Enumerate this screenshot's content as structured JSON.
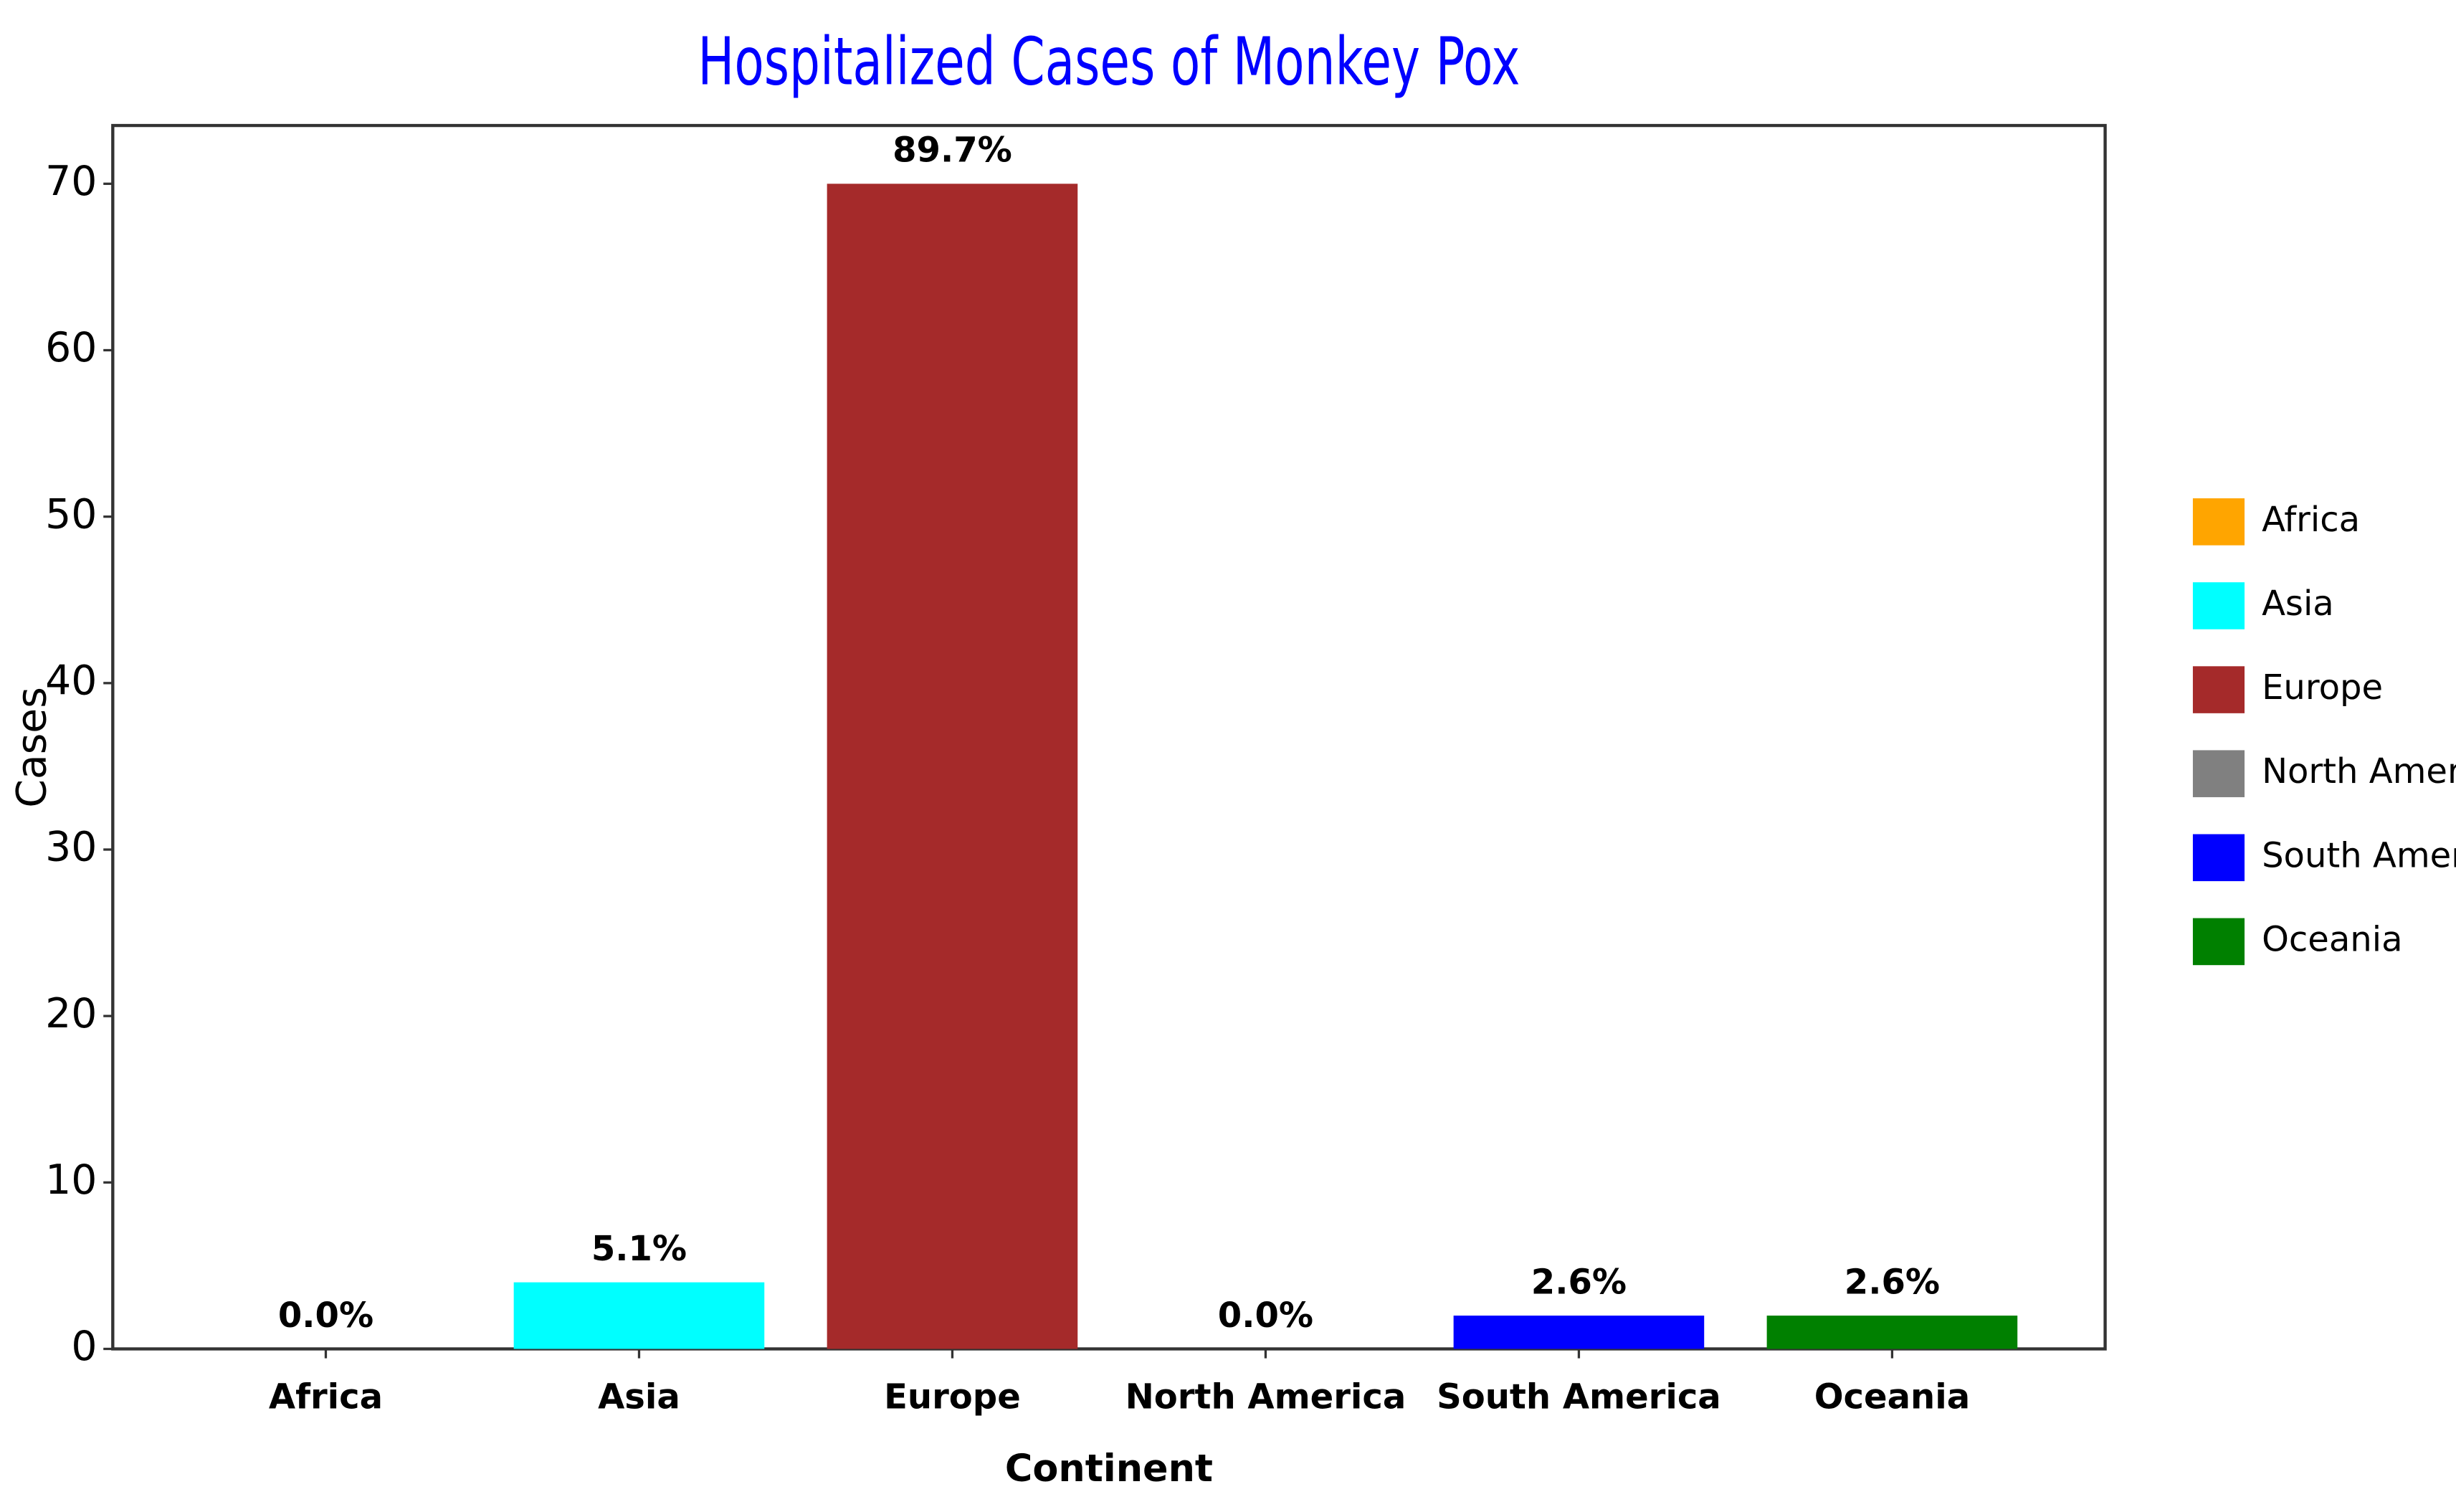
{
  "chart_data": {
    "type": "bar",
    "title": "Hospitalized Cases of Monkey Pox",
    "x_label": "Continent",
    "y_label": "Cases",
    "categories": [
      "Africa",
      "Asia",
      "Europe",
      "North America",
      "South America",
      "Oceania"
    ],
    "values": [
      0,
      4,
      70,
      0,
      2,
      2
    ],
    "value_labels": [
      "0.0%",
      "5.1%",
      "89.7%",
      "0.0%",
      "2.6%",
      "2.6%"
    ],
    "colors": [
      "#ffa500",
      "#00ffff",
      "#a52a2a",
      "#808080",
      "#0000ff",
      "#008000"
    ],
    "ylim": [
      0,
      73.5
    ],
    "yticks": [
      0,
      10,
      20,
      30,
      40,
      50,
      60,
      70
    ],
    "grid": false,
    "legend": "right"
  }
}
